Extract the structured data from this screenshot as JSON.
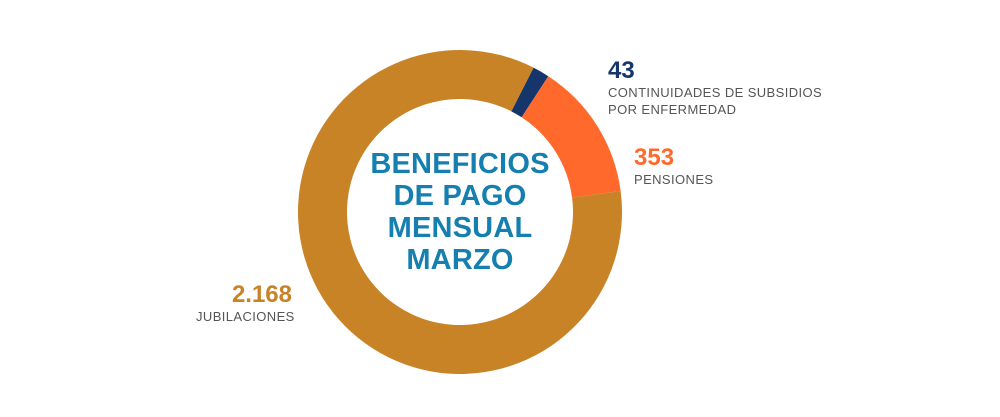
{
  "chart_data": {
    "type": "pie",
    "title_lines": [
      "BENEFICIOS",
      "DE PAGO",
      "MENSUAL",
      "MARZO"
    ],
    "slices": [
      {
        "value": 43,
        "value_label": "43",
        "label_lines": [
          "CONTINUIDADES DE SUBSIDIOS",
          "POR ENFERMEDAD"
        ],
        "color": "#16366b"
      },
      {
        "value": 353,
        "value_label": "353",
        "label_lines": [
          "PENSIONES"
        ],
        "color": "#ff6a2c"
      },
      {
        "value": 2168,
        "value_label": "2.168",
        "label_lines": [
          "JUBILACIONES"
        ],
        "color": "#c98327"
      }
    ],
    "donut": true,
    "legend": "none"
  }
}
